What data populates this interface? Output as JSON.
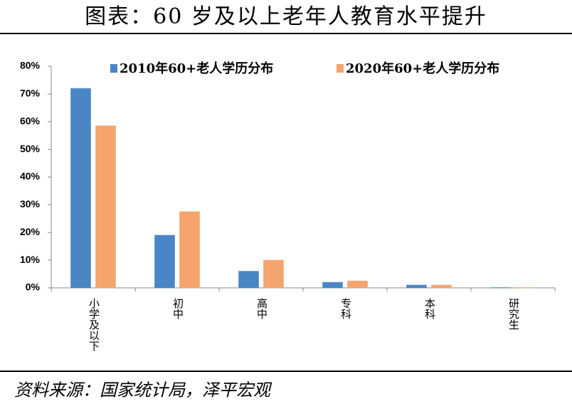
{
  "title": "图表：60 岁及以上老年人教育水平提升",
  "source": "资料来源：国家统计局，泽平宏观",
  "chart_data": {
    "type": "bar",
    "categories": [
      "小学及以下",
      "初中",
      "高中",
      "专科",
      "本科",
      "研究生"
    ],
    "series": [
      {
        "name": "2010年60+老人学历分布",
        "color": "#4a86c5",
        "values": [
          72,
          19,
          6,
          2,
          1,
          0.1
        ]
      },
      {
        "name": "2020年60+老人学历分布",
        "color": "#f4a46c",
        "values": [
          58.5,
          27.5,
          10,
          2.5,
          1,
          0.1
        ]
      }
    ],
    "ylim": [
      0,
      80
    ],
    "yticks": [
      {
        "value": 0,
        "label": "0%"
      },
      {
        "value": 10,
        "label": "10%"
      },
      {
        "value": 20,
        "label": "20%"
      },
      {
        "value": 30,
        "label": "30%"
      },
      {
        "value": 40,
        "label": "40%"
      },
      {
        "value": 50,
        "label": "50%"
      },
      {
        "value": 60,
        "label": "60%"
      },
      {
        "value": 70,
        "label": "70%"
      },
      {
        "value": 80,
        "label": "80%"
      }
    ],
    "legend": "top"
  }
}
